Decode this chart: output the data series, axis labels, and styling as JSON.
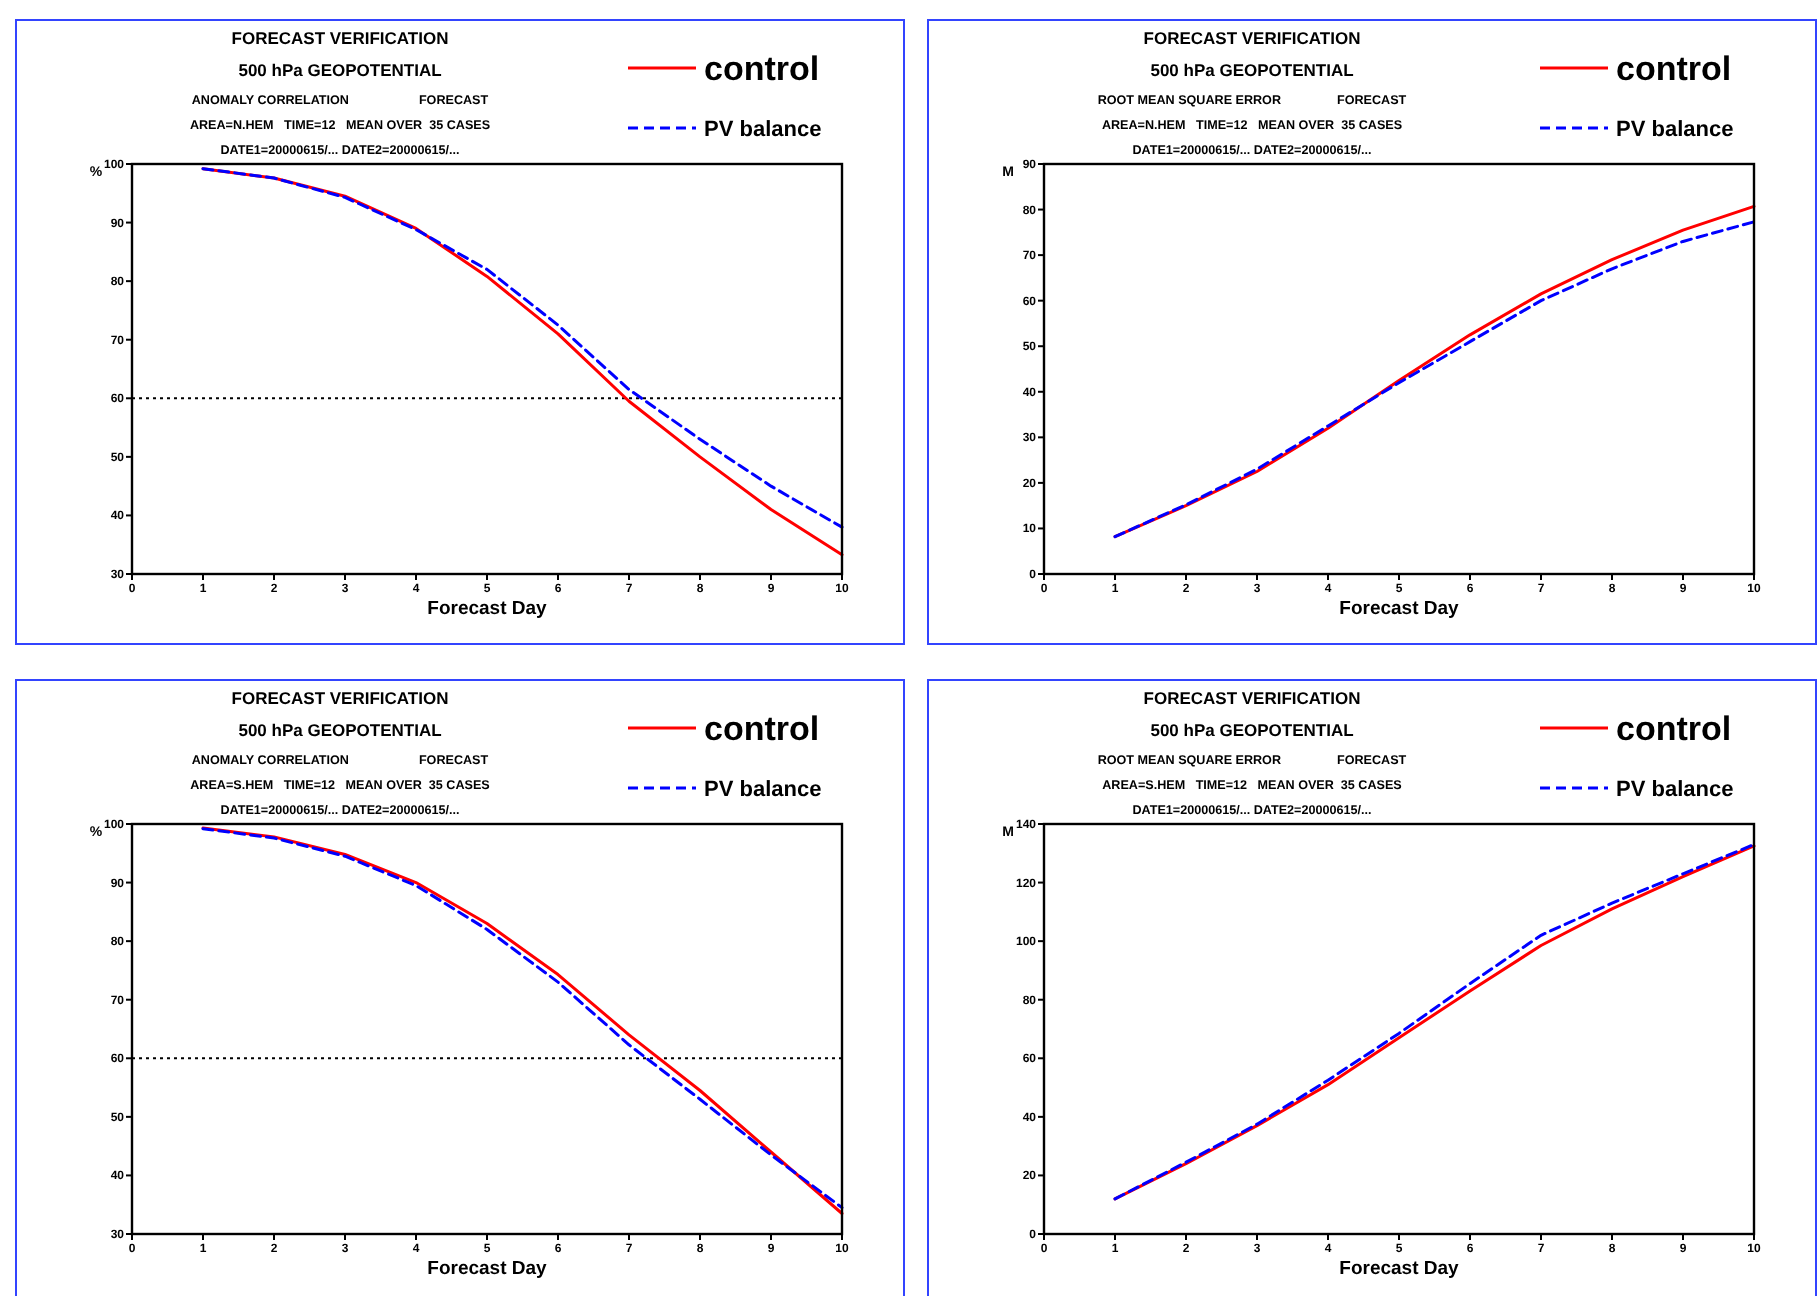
{
  "chart_data": [
    {
      "type": "line",
      "title": "FORECAST VERIFICATION",
      "subtitle": "500 hPa GEOPOTENTIAL",
      "annotations": [
        "ANOMALY CORRELATION                    FORECAST",
        "AREA=N.HEM   TIME=12   MEAN OVER  35 CASES",
        "DATE1=20000615/... DATE2=20000615/..."
      ],
      "xlabel": "Forecast Day",
      "ylabel": "%",
      "x": [
        1,
        2,
        3,
        4,
        5,
        6,
        7,
        8,
        9,
        10
      ],
      "xlim": [
        0,
        10
      ],
      "xticks": [
        0,
        1,
        2,
        3,
        4,
        5,
        6,
        7,
        8,
        9,
        10
      ],
      "ylim": [
        30,
        100
      ],
      "yticks": [
        30,
        40,
        50,
        60,
        70,
        80,
        90,
        100
      ],
      "grid": false,
      "legend": "top right",
      "marker": "none",
      "series": [
        {
          "name": "control",
          "color": "#ff0000",
          "line_style": "solid",
          "values": [
            99.2,
            97.6,
            94.5,
            89,
            80.8,
            71,
            59.5,
            50,
            41,
            33.3
          ]
        },
        {
          "name": "PV balance",
          "color": "#0000ff",
          "line_style": "dashed",
          "values": [
            99.2,
            97.6,
            94.3,
            88.8,
            82,
            72.5,
            61.5,
            53,
            45,
            38
          ]
        }
      ],
      "ref_lines": [
        {
          "axis": "y",
          "value": 60,
          "color": "#000000",
          "line_style": "dotted"
        }
      ]
    },
    {
      "type": "line",
      "title": "FORECAST VERIFICATION",
      "subtitle": "500 hPa GEOPOTENTIAL",
      "annotations": [
        "ROOT MEAN SQUARE ERROR                FORECAST",
        "AREA=N.HEM   TIME=12   MEAN OVER  35 CASES",
        "DATE1=20000615/... DATE2=20000615/..."
      ],
      "xlabel": "Forecast Day",
      "ylabel": "M",
      "x": [
        1,
        2,
        3,
        4,
        5,
        6,
        7,
        8,
        9,
        10
      ],
      "xlim": [
        0,
        10
      ],
      "xticks": [
        0,
        1,
        2,
        3,
        4,
        5,
        6,
        7,
        8,
        9,
        10
      ],
      "ylim": [
        0,
        90
      ],
      "yticks": [
        0,
        10,
        20,
        30,
        40,
        50,
        60,
        70,
        80,
        90
      ],
      "grid": false,
      "legend": "top right",
      "marker": "none",
      "series": [
        {
          "name": "control",
          "color": "#ff0000",
          "line_style": "solid",
          "values": [
            8.2,
            15,
            22.5,
            32,
            42.5,
            52.5,
            61.5,
            69,
            75.5,
            80.7
          ]
        },
        {
          "name": "PV balance",
          "color": "#0000ff",
          "line_style": "dashed",
          "values": [
            8.2,
            15.2,
            23,
            32.5,
            42,
            51,
            60,
            67,
            73,
            77.3
          ]
        }
      ]
    },
    {
      "type": "line",
      "title": "FORECAST VERIFICATION",
      "subtitle": "500 hPa GEOPOTENTIAL",
      "annotations": [
        "ANOMALY CORRELATION                    FORECAST",
        "AREA=S.HEM   TIME=12   MEAN OVER  35 CASES",
        "DATE1=20000615/... DATE2=20000615/..."
      ],
      "xlabel": "Forecast Day",
      "ylabel": "%",
      "x": [
        1,
        2,
        3,
        4,
        5,
        6,
        7,
        8,
        9,
        10
      ],
      "xlim": [
        0,
        10
      ],
      "xticks": [
        0,
        1,
        2,
        3,
        4,
        5,
        6,
        7,
        8,
        9,
        10
      ],
      "ylim": [
        30,
        100
      ],
      "yticks": [
        30,
        40,
        50,
        60,
        70,
        80,
        90,
        100
      ],
      "grid": false,
      "legend": "top right",
      "marker": "none",
      "series": [
        {
          "name": "control",
          "color": "#ff0000",
          "line_style": "solid",
          "values": [
            99.3,
            97.8,
            94.8,
            90,
            83,
            74.3,
            64,
            54.5,
            44,
            33.5
          ]
        },
        {
          "name": "PV balance",
          "color": "#0000ff",
          "line_style": "dashed",
          "values": [
            99.2,
            97.6,
            94.5,
            89.5,
            82,
            73,
            62.3,
            53,
            43.5,
            34.5
          ]
        }
      ],
      "ref_lines": [
        {
          "axis": "y",
          "value": 60,
          "color": "#000000",
          "line_style": "dotted"
        }
      ]
    },
    {
      "type": "line",
      "title": "FORECAST VERIFICATION",
      "subtitle": "500 hPa GEOPOTENTIAL",
      "annotations": [
        "ROOT MEAN SQUARE ERROR                FORECAST",
        "AREA=S.HEM   TIME=12   MEAN OVER  35 CASES",
        "DATE1=20000615/... DATE2=20000615/..."
      ],
      "xlabel": "Forecast Day",
      "ylabel": "M",
      "x": [
        1,
        2,
        3,
        4,
        5,
        6,
        7,
        8,
        9,
        10
      ],
      "xlim": [
        0,
        10
      ],
      "xticks": [
        0,
        1,
        2,
        3,
        4,
        5,
        6,
        7,
        8,
        9,
        10
      ],
      "ylim": [
        0,
        140
      ],
      "yticks": [
        0,
        20,
        40,
        60,
        80,
        100,
        120,
        140
      ],
      "grid": false,
      "legend": "top right",
      "marker": "none",
      "series": [
        {
          "name": "control",
          "color": "#ff0000",
          "line_style": "solid",
          "values": [
            12,
            24,
            37,
            51,
            67,
            83,
            98.5,
            111,
            122,
            132.5
          ]
        },
        {
          "name": "PV balance",
          "color": "#0000ff",
          "line_style": "dashed",
          "values": [
            12,
            24.5,
            37.5,
            52.5,
            68.5,
            85.5,
            102,
            113,
            123,
            133
          ]
        }
      ]
    }
  ]
}
